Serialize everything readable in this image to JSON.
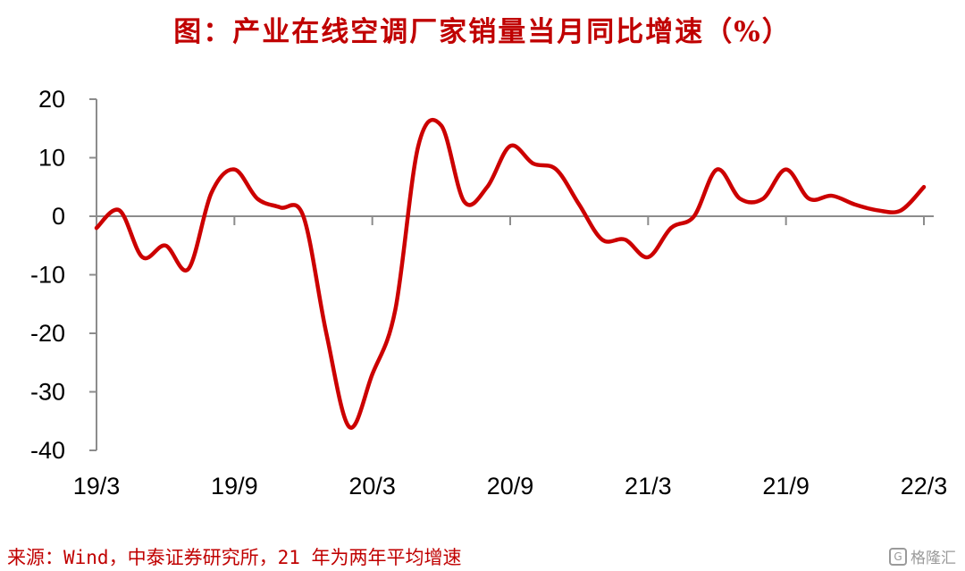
{
  "chart_data": {
    "type": "line",
    "title": "图：产业在线空调厂家销量当月同比增速（%）",
    "xlabel": "",
    "ylabel": "",
    "ylim": [
      -40,
      20
    ],
    "yticks": [
      20,
      10,
      0,
      -10,
      -20,
      -30,
      -40
    ],
    "xtick_labels": [
      "19/3",
      "19/9",
      "20/3",
      "20/9",
      "21/3",
      "21/9",
      "22/3"
    ],
    "x": [
      "19/3",
      "19/4",
      "19/5",
      "19/6",
      "19/7",
      "19/8",
      "19/9",
      "19/10",
      "19/11",
      "19/12",
      "20/1",
      "20/2",
      "20/3",
      "20/4",
      "20/5",
      "20/6",
      "20/7",
      "20/8",
      "20/9",
      "20/10",
      "20/11",
      "20/12",
      "21/1",
      "21/2",
      "21/3",
      "21/4",
      "21/5",
      "21/6",
      "21/7",
      "21/8",
      "21/9",
      "21/10",
      "21/11",
      "21/12",
      "22/1",
      "22/2",
      "22/3"
    ],
    "series": [
      {
        "color": "#cc0000",
        "values": [
          -2,
          1,
          -7,
          -5,
          -9,
          4,
          8,
          3,
          1.5,
          0,
          -20,
          -36,
          -27,
          -16,
          12,
          15.5,
          2.5,
          5,
          12,
          9,
          8,
          2,
          -4,
          -4,
          -7,
          -2,
          0,
          8,
          3,
          3,
          8,
          3,
          3.5,
          2,
          1,
          1,
          5
        ]
      }
    ],
    "grid": false,
    "legend": "none"
  },
  "source_text": "来源：Wind，中泰证券研究所，21 年为两年平均增速",
  "watermark": {
    "icon": "gelonghui-logo-icon",
    "text": "格隆汇"
  }
}
